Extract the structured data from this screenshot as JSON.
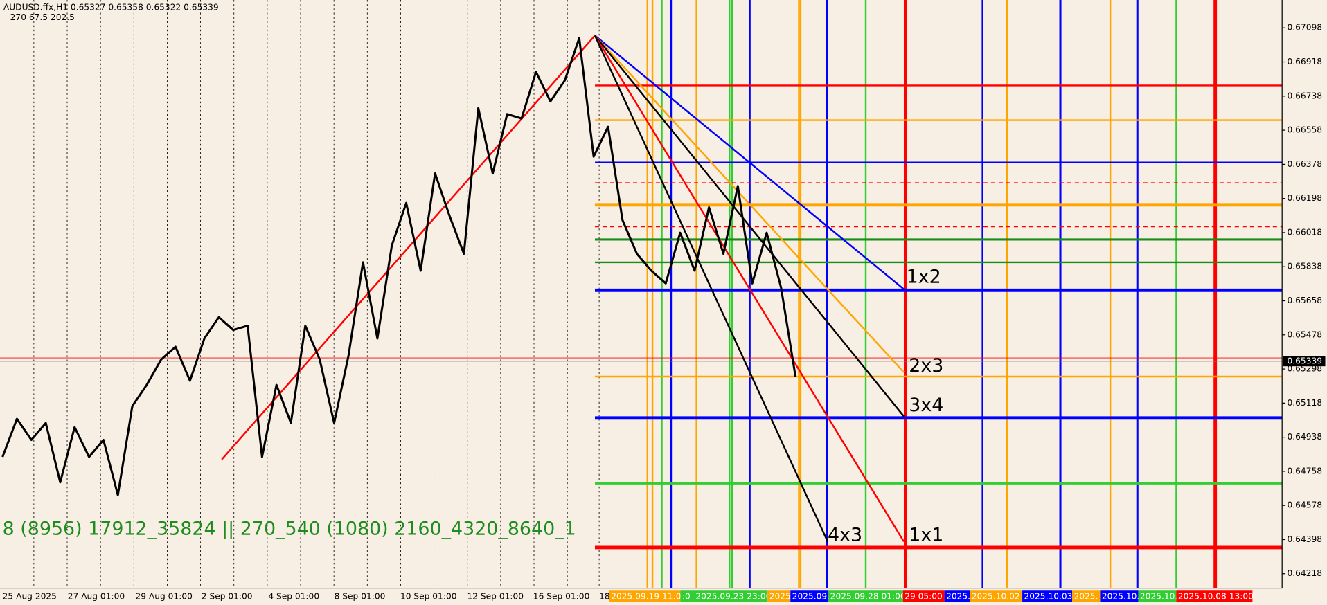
{
  "header": {
    "symbol": "AUDUSD.ffx,H1  0.65327 0.65358 0.65322 0.65339",
    "params": "270   67.5   202.5"
  },
  "chart_data": {
    "type": "line",
    "ylim": [
      0.64142,
      0.67245
    ],
    "yticks": [
      0.67098,
      0.66918,
      0.66738,
      0.66558,
      0.66378,
      0.66198,
      0.66018,
      0.65838,
      0.65658,
      0.65478,
      0.65298,
      0.65118,
      0.64938,
      0.64758,
      0.64578,
      0.64398,
      0.64218
    ],
    "series": [
      {
        "color": "#000000",
        "values": [
          0.64834,
          0.65035,
          0.64924,
          0.65013,
          0.647,
          0.64991,
          0.64834,
          0.64924,
          0.64633,
          0.65102,
          0.65214,
          0.65348,
          0.65415,
          0.65236,
          0.65459,
          0.65571,
          0.65504,
          0.65526,
          0.64834,
          0.65214,
          0.65013,
          0.65526,
          0.65348,
          0.65013,
          0.6537,
          0.65861,
          0.65459,
          0.6595,
          0.66174,
          0.65817,
          0.6633,
          0.66107,
          0.65906,
          0.66674,
          0.6633,
          0.66643,
          0.6662,
          0.66866,
          0.6671,
          0.66821,
          0.67044,
          0.66419,
          0.66576,
          0.66084,
          0.65906,
          0.65817,
          0.6575,
          0.66017,
          0.65817,
          0.66151,
          0.65906,
          0.66263,
          0.6575,
          0.66017,
          0.65727,
          0.65258
        ]
      }
    ],
    "current_price": 0.65339
  },
  "time_labels": [
    "25 Aug 2025",
    "27 Aug 01:00",
    "29 Aug 01:00",
    "2 Sep 01:00",
    "4 Sep 01:00",
    "8 Sep 01:00",
    "10 Sep 01:00",
    "12 Sep 01:00",
    "16 Sep 01:00",
    "18"
  ],
  "time_markers": [
    {
      "text": "2025.09.19 11:00",
      "color": "#ffa500"
    },
    {
      "text": ":0",
      "color": "#32cd32"
    },
    {
      "text": "2025.09.23 23:00",
      "color": "#32cd32"
    },
    {
      "text": "2025.",
      "color": "#ffa500"
    },
    {
      "text": "2025.09.",
      "color": "#0000ff"
    },
    {
      "text": "2025.09.28 01:00",
      "color": "#32cd32"
    },
    {
      "text": "29 05:00",
      "color": "#ff0000"
    },
    {
      "text": "2025.",
      "color": "#0000ff"
    },
    {
      "text": "2025.10.02",
      "color": "#ffa500"
    },
    {
      "text": "2025.10.03",
      "color": "#0000ff"
    },
    {
      "text": "2025.",
      "color": "#ffa500"
    },
    {
      "text": "2025.10.",
      "color": "#0000ff"
    },
    {
      "text": "2025.10.",
      "color": "#32cd32"
    },
    {
      "text": "2025.10.08 13:00",
      "color": "#ff0000"
    }
  ],
  "level_labels": [
    "1x2",
    "2x3",
    "3x4",
    "4x3",
    "1x1"
  ],
  "annotation": "8 (8956) 17912_35824 || 270_540 (1080) 2160_4320_8640_1"
}
